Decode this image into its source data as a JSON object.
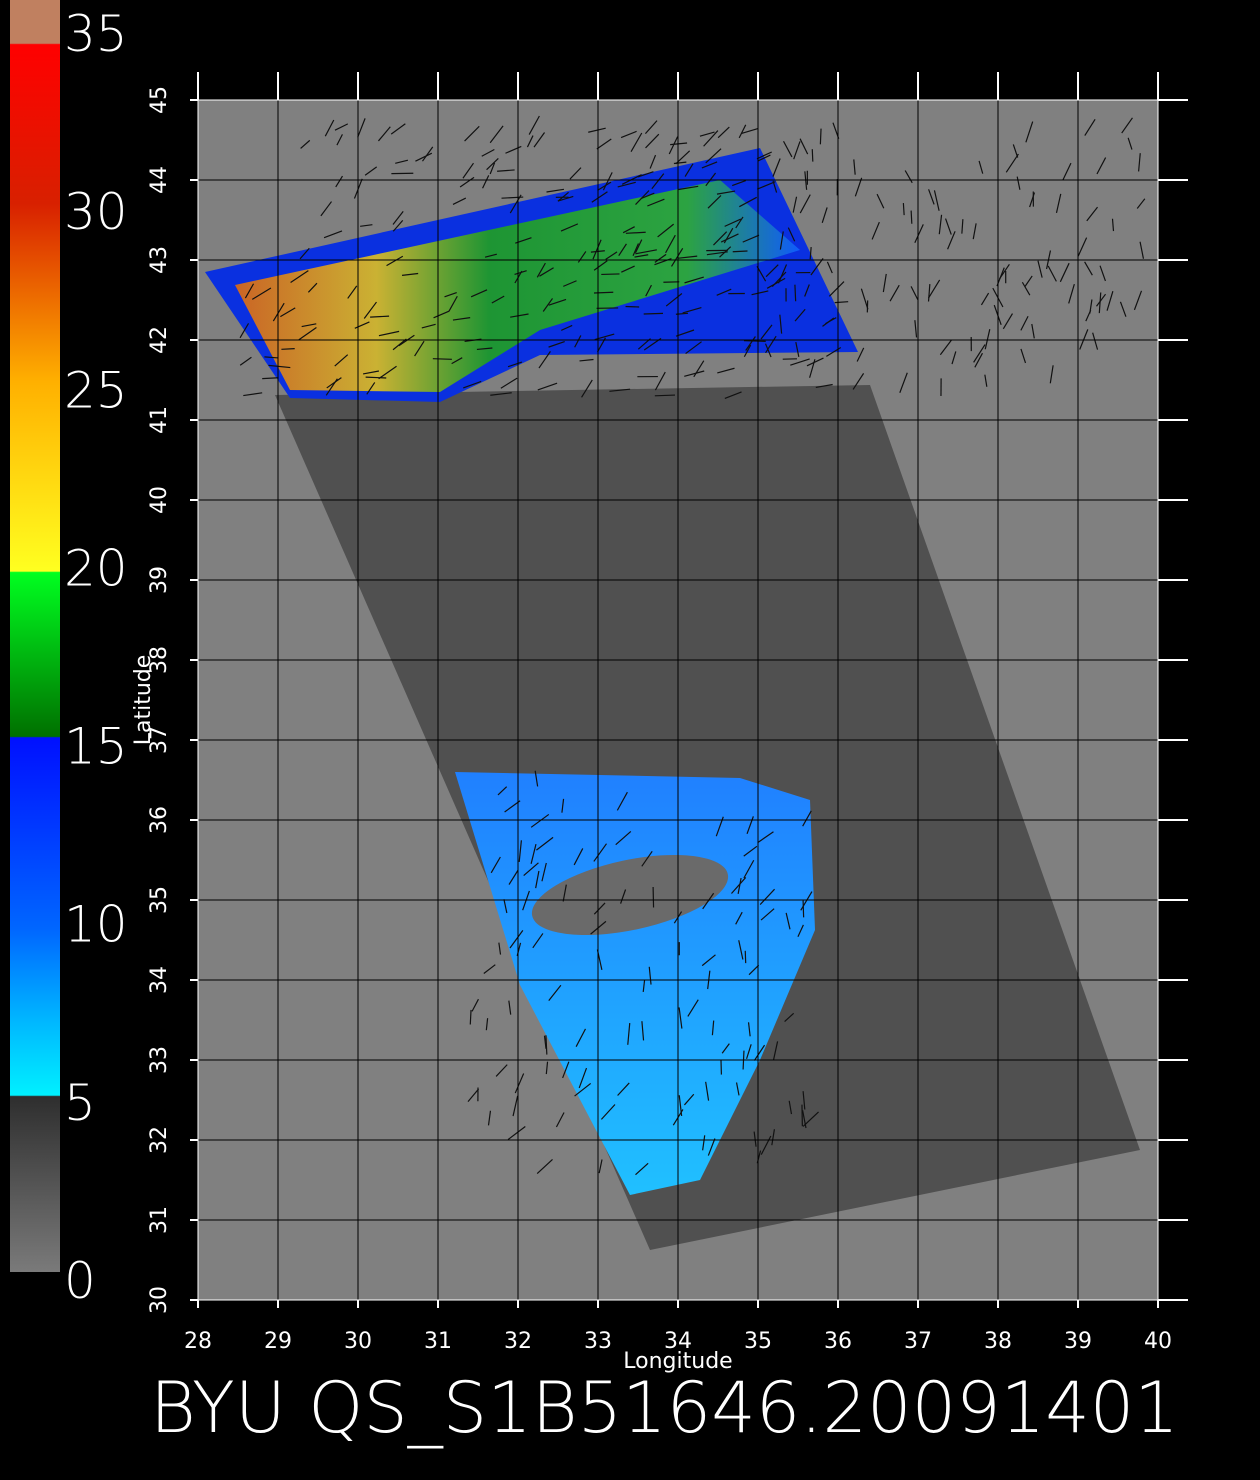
{
  "colorbar": {
    "ticks": [
      0,
      5,
      10,
      15,
      20,
      25,
      30,
      35
    ]
  },
  "map": {
    "latitude_ticks": [
      30,
      31,
      32,
      33,
      34,
      35,
      36,
      37,
      38,
      39,
      40,
      41,
      42,
      43,
      44,
      45
    ],
    "longitude_ticks": [
      28,
      29,
      30,
      31,
      32,
      33,
      34,
      35,
      36,
      37,
      38,
      39,
      40
    ],
    "latitude_label": "Latitude",
    "longitude_label": "Longitude"
  },
  "title": "BYU  QS_S1B51646.20091401"
}
